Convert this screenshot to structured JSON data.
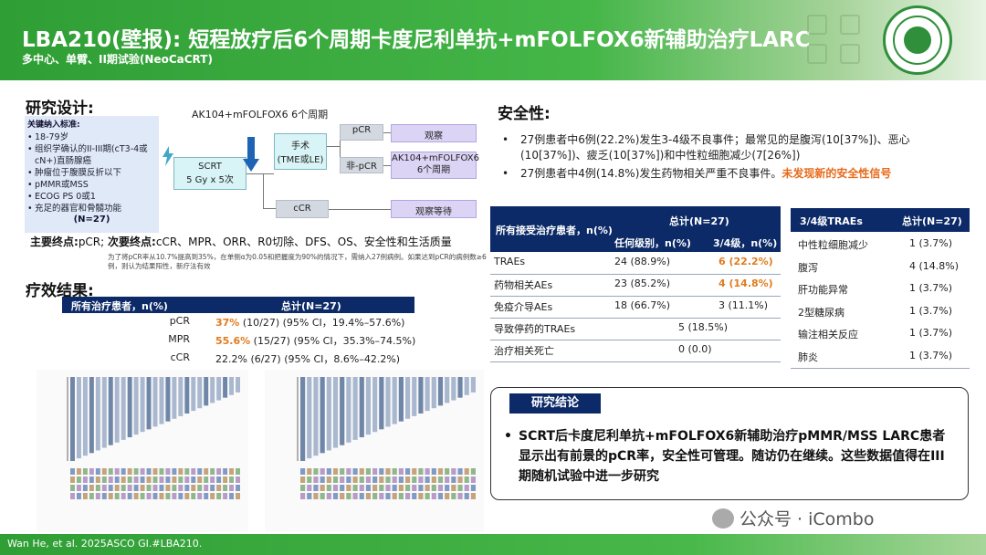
{
  "header": {
    "title": "LBA210(壁报): 短程放疗后6个周期卡度尼利单抗+mFOLFOX6新辅助治疗LARC",
    "subtitle": "多中心、单臂、II期试验(NeoCaCRT)"
  },
  "design": {
    "heading": "研究设计:",
    "inclusion_title": "关键纳入标准:",
    "inclusion": [
      "18-79岁",
      "组织学确认的II-III期(cT3-4或cN+)直肠腺癌",
      "肿瘤位于腹膜反折以下",
      "pMMR或MSS",
      "ECOG PS 0或1",
      "充足的器官和骨髓功能"
    ],
    "n": "(N=27)",
    "scrt": "SCRT\n5 Gy x 5次",
    "drug": "AK104+mFOLFOX6 6个周期",
    "surgery": "手术\n(TME或LE)",
    "pcr": "pCR",
    "nonpcr": "非-pCR",
    "observe": "观察",
    "more": "AK104+mFOLFOX6\n6个周期",
    "ccr": "cCR",
    "watch": "观察等待",
    "endpoints_label1": "主要终点:",
    "endpoints_primary": "pCR;",
    "endpoints_label2": "次要终点:",
    "endpoints_secondary": "cCR、MPR、ORR、R0切除、DFS、OS、安全性和生活质量",
    "note": "为了将pCR率从10.7%提高到35%，在单侧α为0.05和把握度为90%的情况下，需纳入27例病例。如果达到pCR的病例数≥6例，则认为结果阳性，新疗法有效"
  },
  "efficacy": {
    "heading": "疗效结果:",
    "col1": "所有治疗患者，n(%)",
    "col2": "总计(N=27)",
    "rows": [
      {
        "k": "pCR",
        "hl": "37%",
        "rest": " (10/27) (95% CI，19.4%–57.6%)"
      },
      {
        "k": "MPR",
        "hl": "55.6%",
        "rest": " (15/27) (95% CI，35.3%–74.5%)"
      },
      {
        "k": "cCR",
        "hl": "",
        "rest": "22.2% (6/27) (95% CI，8.6%–42.2%)"
      }
    ]
  },
  "safety": {
    "heading": "安全性:",
    "b1": "27例患者中6例(22.2%)发生3-4级不良事件；最常见的是腹泻(10[37%])、恶心(10[37%])、疲乏(10[37%])和中性粒细胞减少(7[26%])",
    "b2a": "27例患者中4例(14.8%)发生药物相关严重不良事件。",
    "b2b": "未发现新的安全性信号",
    "t1_col1": "所有接受治疗患者，n(%)",
    "t1_col2": "总计(N=27)",
    "t1_sub1": "任何级别，n(%)",
    "t1_sub2": "3/4级，n(%)",
    "t1_rows": [
      {
        "name": "TRAEs",
        "any": "24 (88.9%)",
        "g34": "6 (22.2%)",
        "hl": true
      },
      {
        "name": "药物相关AEs",
        "any": "23 (85.2%)",
        "g34": "4 (14.8%)",
        "hl": true
      },
      {
        "name": "免疫介导AEs",
        "any": "18 (66.7%)",
        "g34": "3 (11.1%)",
        "hl": false
      },
      {
        "name": "导致停药的TRAEs",
        "any": "5 (18.5%)",
        "g34": "",
        "hl": false
      },
      {
        "name": "治疗相关死亡",
        "any": "0 (0.0)",
        "g34": "",
        "hl": false
      }
    ],
    "t2_col1": "3/4级TRAEs",
    "t2_col2": "总计(N=27)",
    "t2_rows": [
      {
        "name": "中性粒细胞减少",
        "v": "1 (3.7%)"
      },
      {
        "name": "腹泻",
        "v": "4 (14.8%)"
      },
      {
        "name": "肝功能异常",
        "v": "1 (3.7%)"
      },
      {
        "name": "2型糖尿病",
        "v": "1 (3.7%)"
      },
      {
        "name": "输注相关反应",
        "v": "1 (3.7%)"
      },
      {
        "name": "肺炎",
        "v": "1 (3.7%)"
      }
    ]
  },
  "conclusion": {
    "tag": "研究结论",
    "text": "SCRT后卡度尼利单抗+mFOLFOX6新辅助治疗pMMR/MSS LARC患者显示出有前景的pCR率，安全性可管理。随访仍在继续。这些数据值得在III期随机试验中进一步研究"
  },
  "footer": {
    "citation": "Wan He, et al. 2025ASCO GI.#LBA210."
  },
  "watermark": "公众号 · iCombo",
  "colors": {
    "green": "#2f9e35",
    "navy": "#0c2a67",
    "orange": "#e07b1f"
  }
}
